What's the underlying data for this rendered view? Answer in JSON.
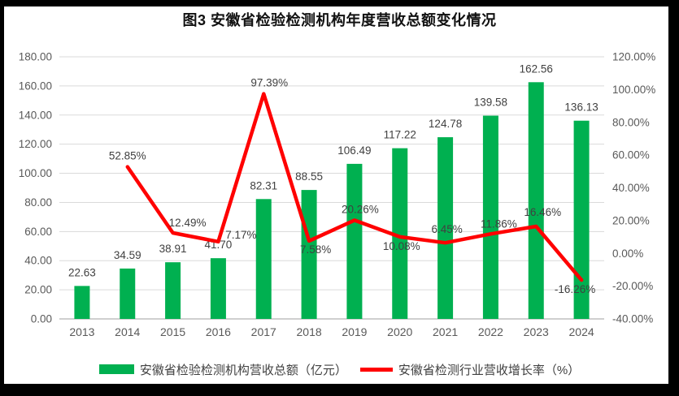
{
  "title": "图3 安徽省检验检测机构年度营收总额变化情况",
  "chart_data": {
    "type": "combo",
    "categories": [
      "2013",
      "2014",
      "2015",
      "2016",
      "2017",
      "2018",
      "2019",
      "2020",
      "2021",
      "2022",
      "2023",
      "2024"
    ],
    "series": [
      {
        "name": "安徽省检验检测机构营收总额（亿元）",
        "type": "bar",
        "axis": "left",
        "color": "#00B050",
        "values": [
          22.63,
          34.59,
          38.91,
          41.7,
          82.31,
          88.55,
          106.49,
          117.22,
          124.78,
          139.58,
          162.56,
          136.13
        ],
        "data_labels": [
          "22.63",
          "34.59",
          "38.91",
          "41.70",
          "82.31",
          "88.55",
          "106.49",
          "117.22",
          "124.78",
          "139.58",
          "162.56",
          "136.13"
        ]
      },
      {
        "name": "安徽省检测行业营收增长率（%）",
        "type": "line",
        "axis": "right",
        "color": "#FF0000",
        "values": [
          null,
          52.85,
          12.49,
          7.17,
          97.39,
          7.58,
          20.26,
          10.08,
          6.45,
          11.86,
          16.46,
          -16.26
        ],
        "data_labels": [
          null,
          "52.85%",
          "12.49%",
          "7.17%",
          "97.39%",
          "7.58%",
          "20.26%",
          "10.08%",
          "6.45%",
          "11.86%",
          "16.46%",
          "-16.26%"
        ]
      }
    ],
    "left_axis": {
      "min": 0,
      "max": 180,
      "step": 20,
      "tick_labels": [
        "0.00",
        "20.00",
        "40.00",
        "60.00",
        "80.00",
        "100.00",
        "120.00",
        "140.00",
        "160.00",
        "180.00"
      ]
    },
    "right_axis": {
      "min": -40,
      "max": 120,
      "step": 20,
      "tick_labels": [
        "-40.00%",
        "-20.00%",
        "0.00%",
        "20.00%",
        "40.00%",
        "60.00%",
        "80.00%",
        "100.00%",
        "120.00%"
      ]
    },
    "grid": true,
    "legend_position": "bottom"
  },
  "colors": {
    "bar": "#00B050",
    "line": "#FF0000",
    "gridline": "#DADADA",
    "axis_line": "#BFBFBF",
    "tick_text": "#595959",
    "data_label_text": "#404040",
    "frame": "#000000",
    "background": "#FFFFFF"
  }
}
